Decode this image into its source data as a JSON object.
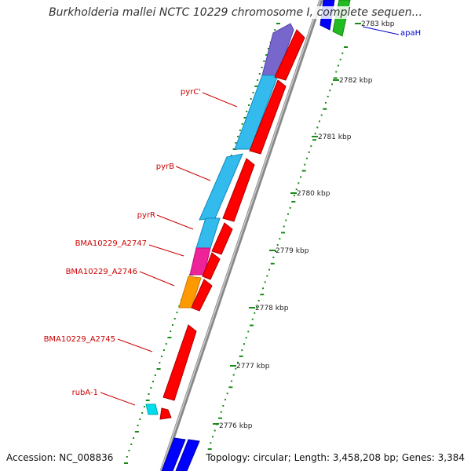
{
  "title": "Burkholderia mallei NCTC 10229 chromosome I, complete sequen...",
  "footer": {
    "accession": "Accession: NC_008836",
    "summary": "Topology: circular; Length: 3,458,208 bp; Genes: 3,384"
  },
  "colors": {
    "backbone": "#888888",
    "forward_gene": "#ff0000",
    "tick": "#1a8a1a",
    "gene_label": "#cc0000",
    "gene_label_blue": "#0000cc",
    "cyan": "#33bbee",
    "purple": "#7766cc",
    "magenta": "#ee2299",
    "orange": "#ff9900",
    "light_cyan": "#00ddee",
    "blue": "#0000ff",
    "green": "#22bb22"
  },
  "scale_labels": [
    "2783 kbp",
    "2782 kbp",
    "2781 kbp",
    "2780 kbp",
    "2779 kbp",
    "2778 kbp",
    "2777 kbp",
    "2776 kbp"
  ],
  "gene_labels": [
    "pyrC'",
    "pyrB",
    "pyrR",
    "BMA10229_A2747",
    "BMA10229_A2746",
    "BMA10229_A2745",
    "rubA-1",
    "apaH"
  ]
}
